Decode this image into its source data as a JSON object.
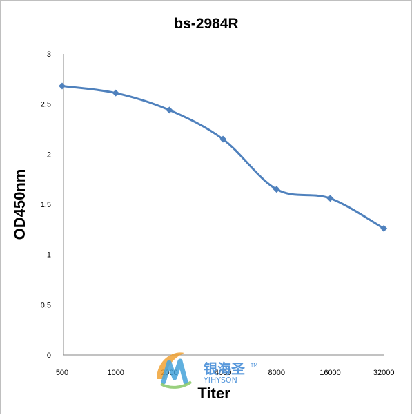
{
  "chart_data": {
    "type": "line",
    "title": "bs-2984R",
    "xlabel": "Titer",
    "ylabel": "OD450nm",
    "categories": [
      "500",
      "1000",
      "2000",
      "4000",
      "8000",
      "16000",
      "32000"
    ],
    "series": [
      {
        "values": [
          2.68,
          2.61,
          2.44,
          2.15,
          1.65,
          1.56,
          1.26
        ],
        "color": "#4f81bd"
      }
    ],
    "yticks": [
      "0",
      "0.5",
      "1",
      "1.5",
      "2",
      "2.5",
      "3"
    ],
    "ylim": [
      0,
      3
    ],
    "grid": false,
    "legend": "none",
    "marker": "diamond",
    "smooth": true
  },
  "watermark": {
    "brand_cn": "银海圣",
    "trademark": "TM",
    "brand_en": "YIHYSON",
    "color": "#4a90d9"
  }
}
